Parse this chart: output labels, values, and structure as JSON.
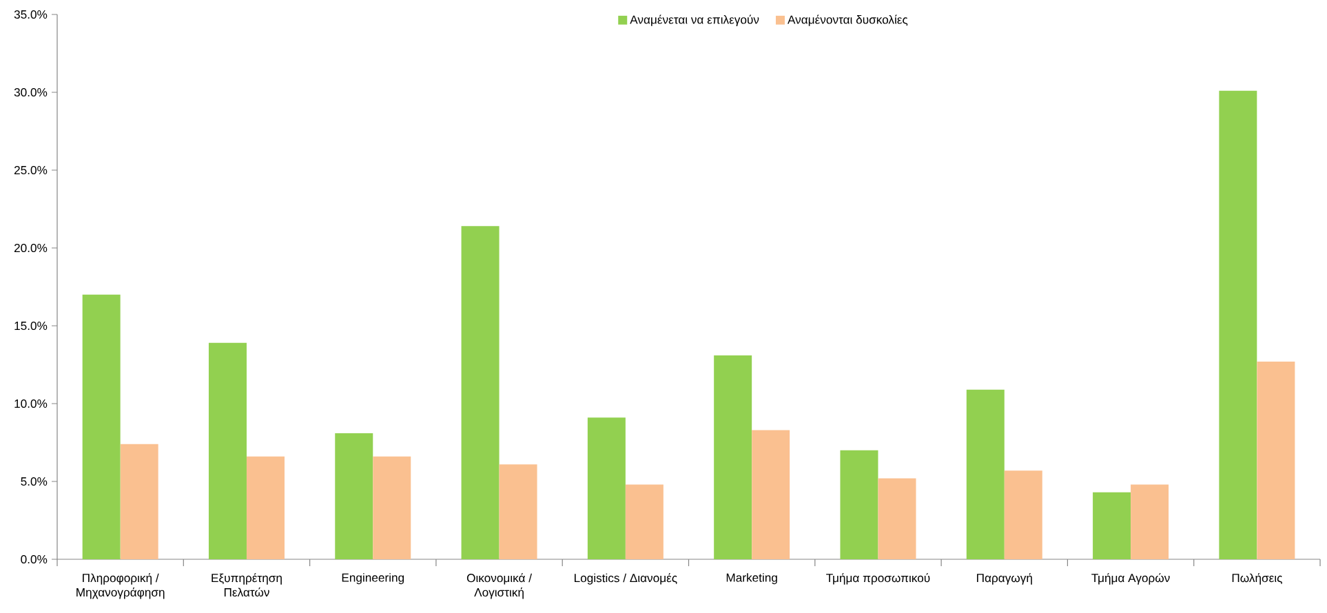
{
  "chart_data": {
    "type": "bar",
    "categories": [
      "Πληροφορική / Μηχανογράφηση",
      "Εξυπηρέτηση Πελατών",
      "Engineering",
      "Οικονομικά / Λογιστική",
      "Logistics / Διανομές",
      "Marketing",
      "Τμήμα προσωπικού",
      "Παραγωγή",
      "Τμήμα Αγορών",
      "Πωλήσεις"
    ],
    "series": [
      {
        "name": "Αναμένεται να επιλεγούν",
        "color": "#92d050",
        "values": [
          17.0,
          13.9,
          8.1,
          21.4,
          9.1,
          13.1,
          7.0,
          10.9,
          4.3,
          30.1
        ]
      },
      {
        "name": "Αναμένονται δυσκολίες",
        "color": "#fac090",
        "values": [
          7.4,
          6.6,
          6.6,
          6.1,
          4.8,
          8.3,
          5.2,
          5.7,
          4.8,
          12.7
        ]
      }
    ],
    "ylim": [
      0,
      35
    ],
    "yticks": [
      {
        "value": 0,
        "label": "0.0%"
      },
      {
        "value": 5,
        "label": "5.0%"
      },
      {
        "value": 10,
        "label": "10.0%"
      },
      {
        "value": 15,
        "label": "15.0%"
      },
      {
        "value": 20,
        "label": "20.0%"
      },
      {
        "value": 25,
        "label": "25.0%"
      },
      {
        "value": 30,
        "label": "30.0%"
      },
      {
        "value": 35,
        "label": "35.0%"
      }
    ],
    "legend": "top"
  }
}
